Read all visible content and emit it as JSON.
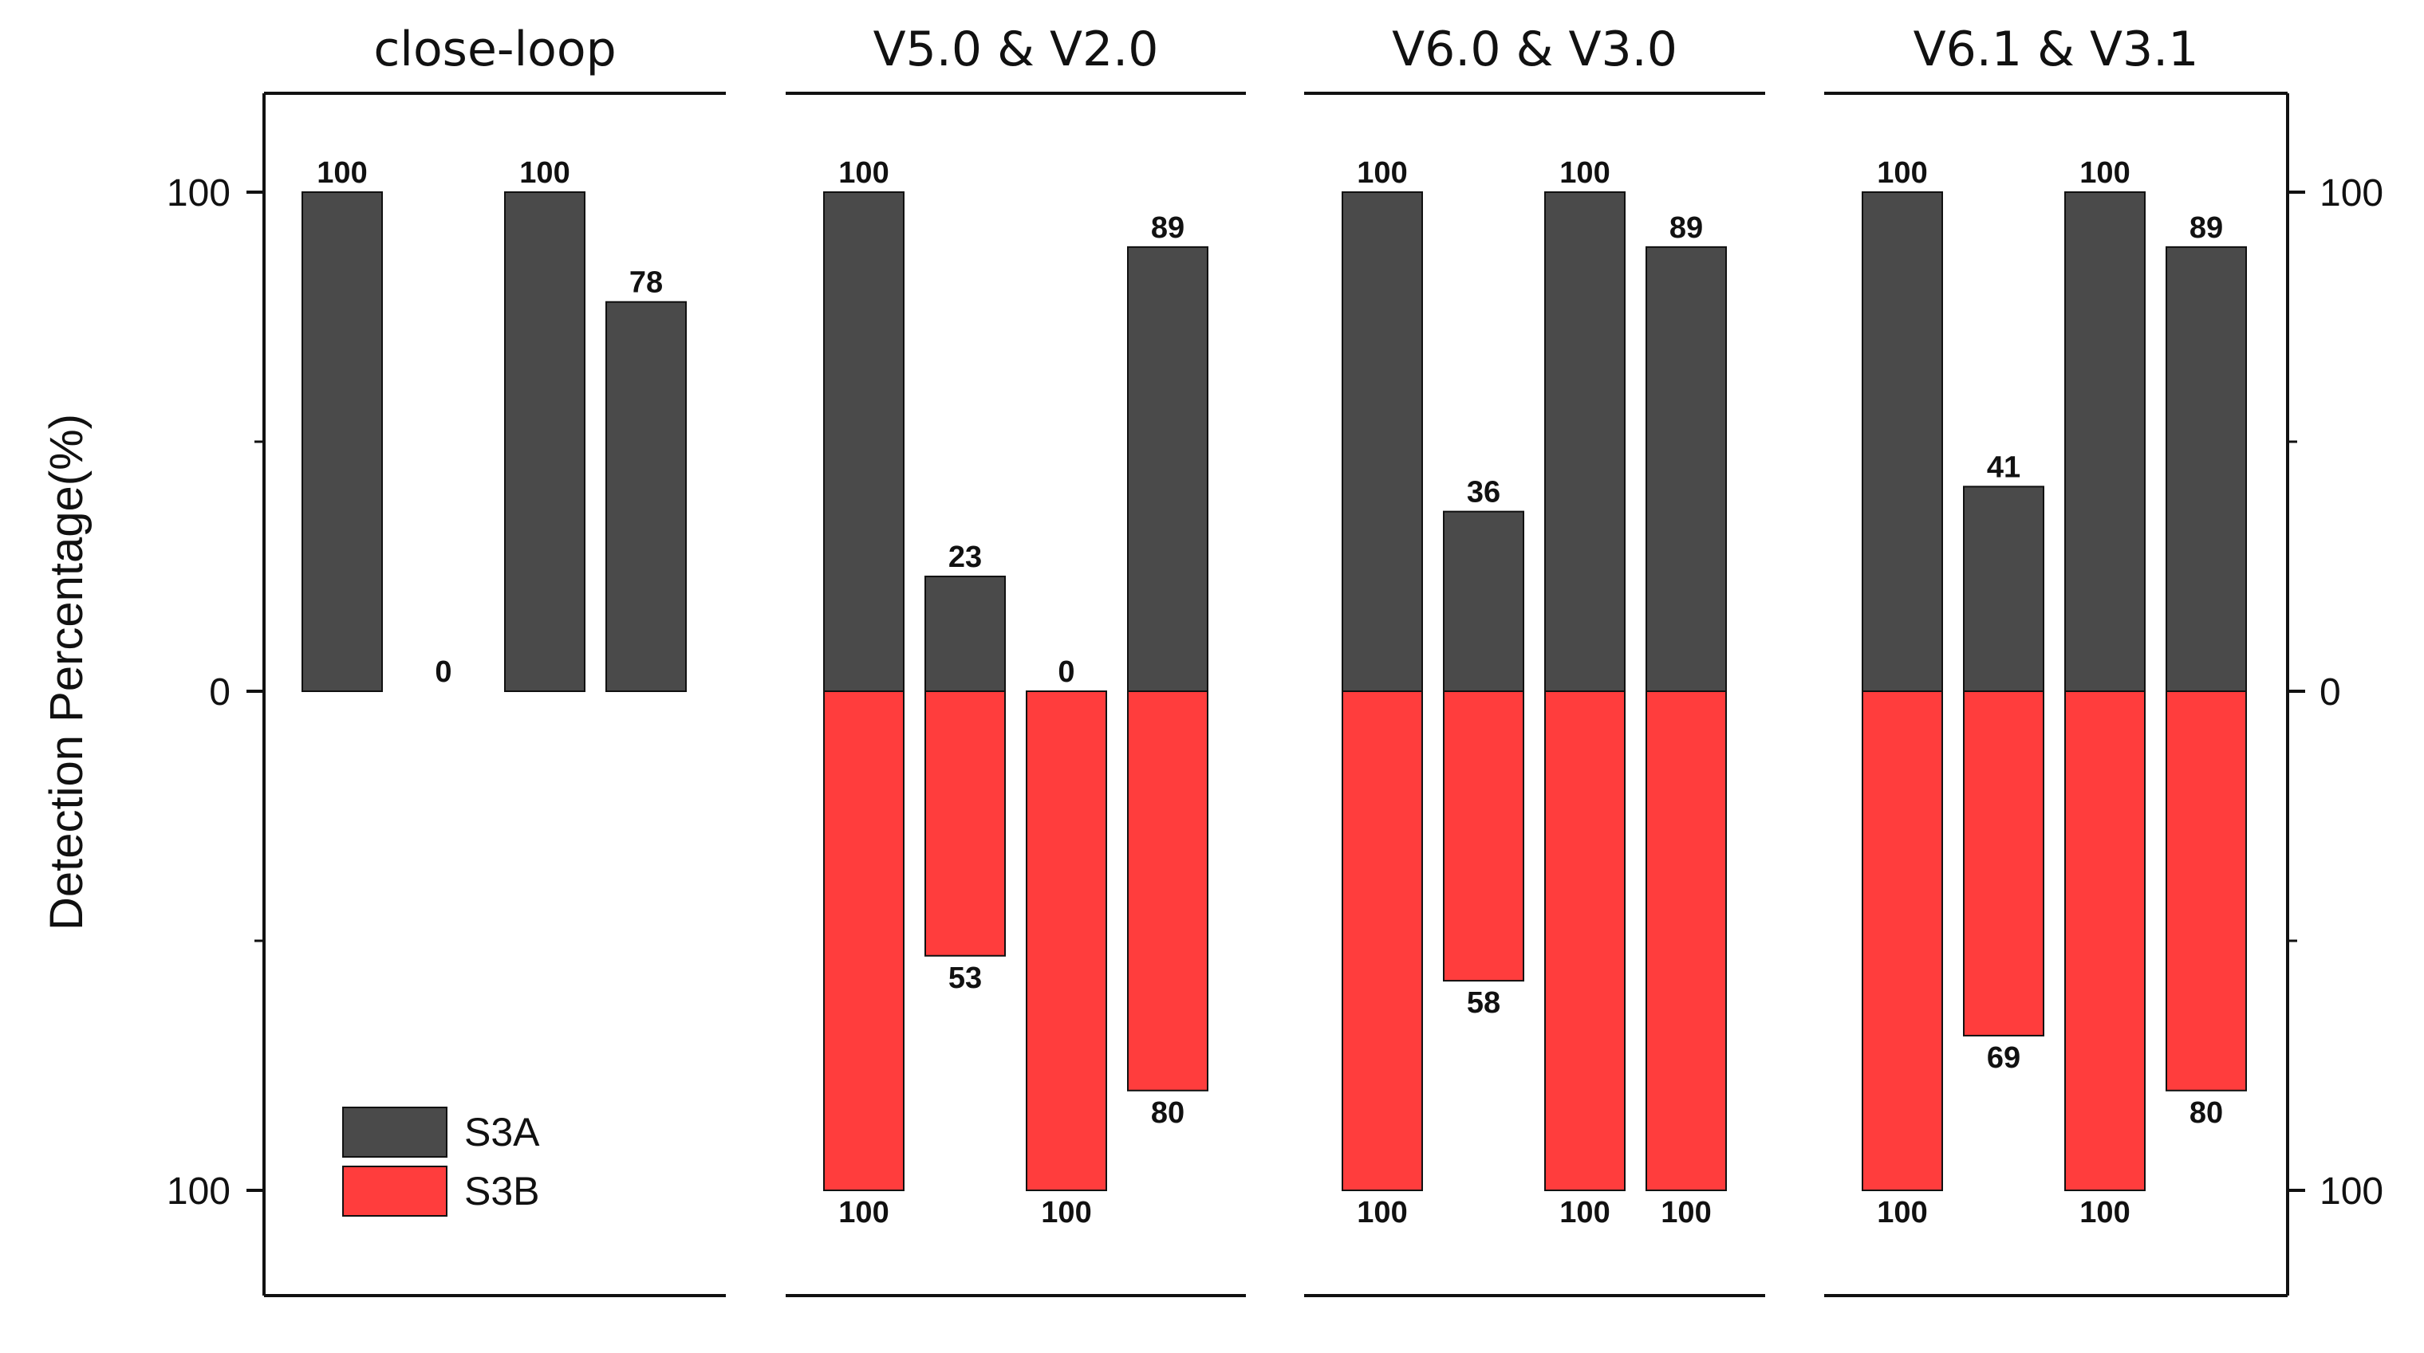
{
  "chart_data": {
    "type": "bar",
    "ylabel": "Detection Percentage(%)",
    "y_axis": {
      "ticks": [
        {
          "value": 100,
          "label": "100"
        },
        {
          "value": 0,
          "label": "0"
        },
        {
          "value": -100,
          "label": "100"
        }
      ],
      "ylim": [
        -120,
        120
      ]
    },
    "legend": {
      "placement": "bottom-left",
      "entries": [
        {
          "name": "S3A",
          "color": "#4a4a4a"
        },
        {
          "name": "S3B",
          "color": "#ff3d3d"
        }
      ]
    },
    "series": [
      {
        "name": "S3A",
        "color": "#4a4a4a",
        "direction": "up"
      },
      {
        "name": "S3B",
        "color": "#ff3d3d",
        "direction": "down"
      }
    ],
    "panels": [
      {
        "title": "close-loop",
        "S3A": [
          100,
          0,
          100,
          78
        ],
        "S3B": [
          null,
          null,
          null,
          null
        ]
      },
      {
        "title": "V5.0 & V2.0",
        "S3A": [
          100,
          23,
          0,
          89
        ],
        "S3B": [
          100,
          53,
          100,
          80
        ]
      },
      {
        "title": "V6.0 & V3.0",
        "S3A": [
          100,
          36,
          100,
          89
        ],
        "S3B": [
          100,
          58,
          100,
          100
        ]
      },
      {
        "title": "V6.1 & V3.1",
        "S3A": [
          100,
          41,
          100,
          89
        ],
        "S3B": [
          100,
          69,
          100,
          80
        ]
      }
    ]
  }
}
